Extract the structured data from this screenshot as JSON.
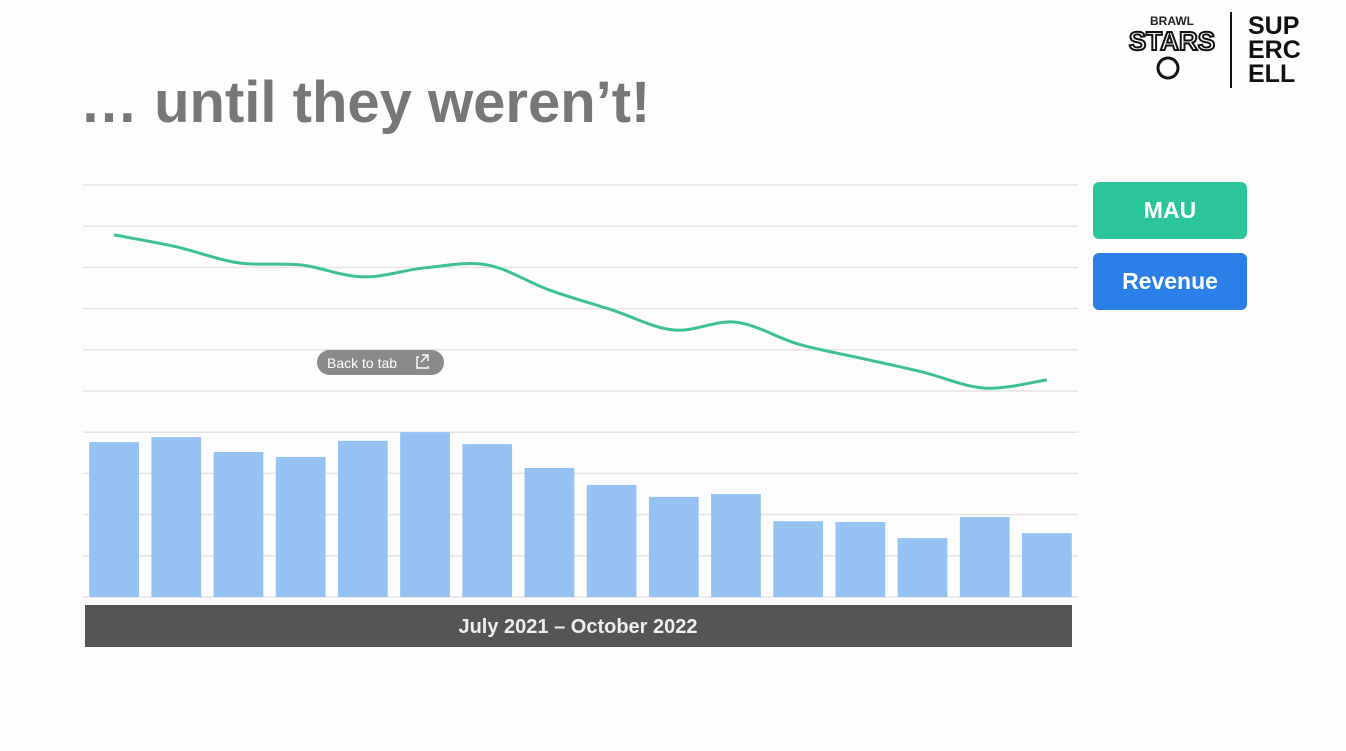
{
  "slide": {
    "logo_brawl": [
      "BRAWL",
      "STARS"
    ],
    "logo_supercell": [
      "SUP",
      "ERC",
      "ELL"
    ],
    "overlay": "Back to tab"
  },
  "chart_data": {
    "type": "bar-line",
    "title": "… until they weren’t!",
    "x_label": "July 2021 – October 2022",
    "categories": [
      null,
      null,
      null,
      null,
      null,
      null,
      null,
      null,
      null,
      null,
      null,
      null,
      null,
      null,
      null,
      null
    ],
    "series": [
      {
        "name": "MAU",
        "kind": "line",
        "color": "#3dbf9a",
        "legend_color": "#2ac59a",
        "values": [
          8.79,
          8.5,
          8.11,
          8.06,
          7.77,
          7.99,
          8.06,
          7.45,
          6.97,
          6.48,
          6.67,
          6.14,
          5.8,
          5.46,
          5.07,
          5.27
        ]
      },
      {
        "name": "Revenue",
        "kind": "bar",
        "color": "#93c2f3",
        "legend_color": "#2b7fe9",
        "values": [
          3.76,
          3.88,
          3.52,
          3.4,
          3.79,
          4.0,
          3.71,
          3.13,
          2.72,
          2.43,
          2.5,
          1.84,
          1.82,
          1.43,
          1.94,
          1.55
        ]
      }
    ],
    "ylim": [
      0,
      10
    ],
    "grid_lines": [
      0,
      1,
      2,
      3,
      4,
      5,
      6,
      7,
      8,
      9,
      10
    ]
  }
}
